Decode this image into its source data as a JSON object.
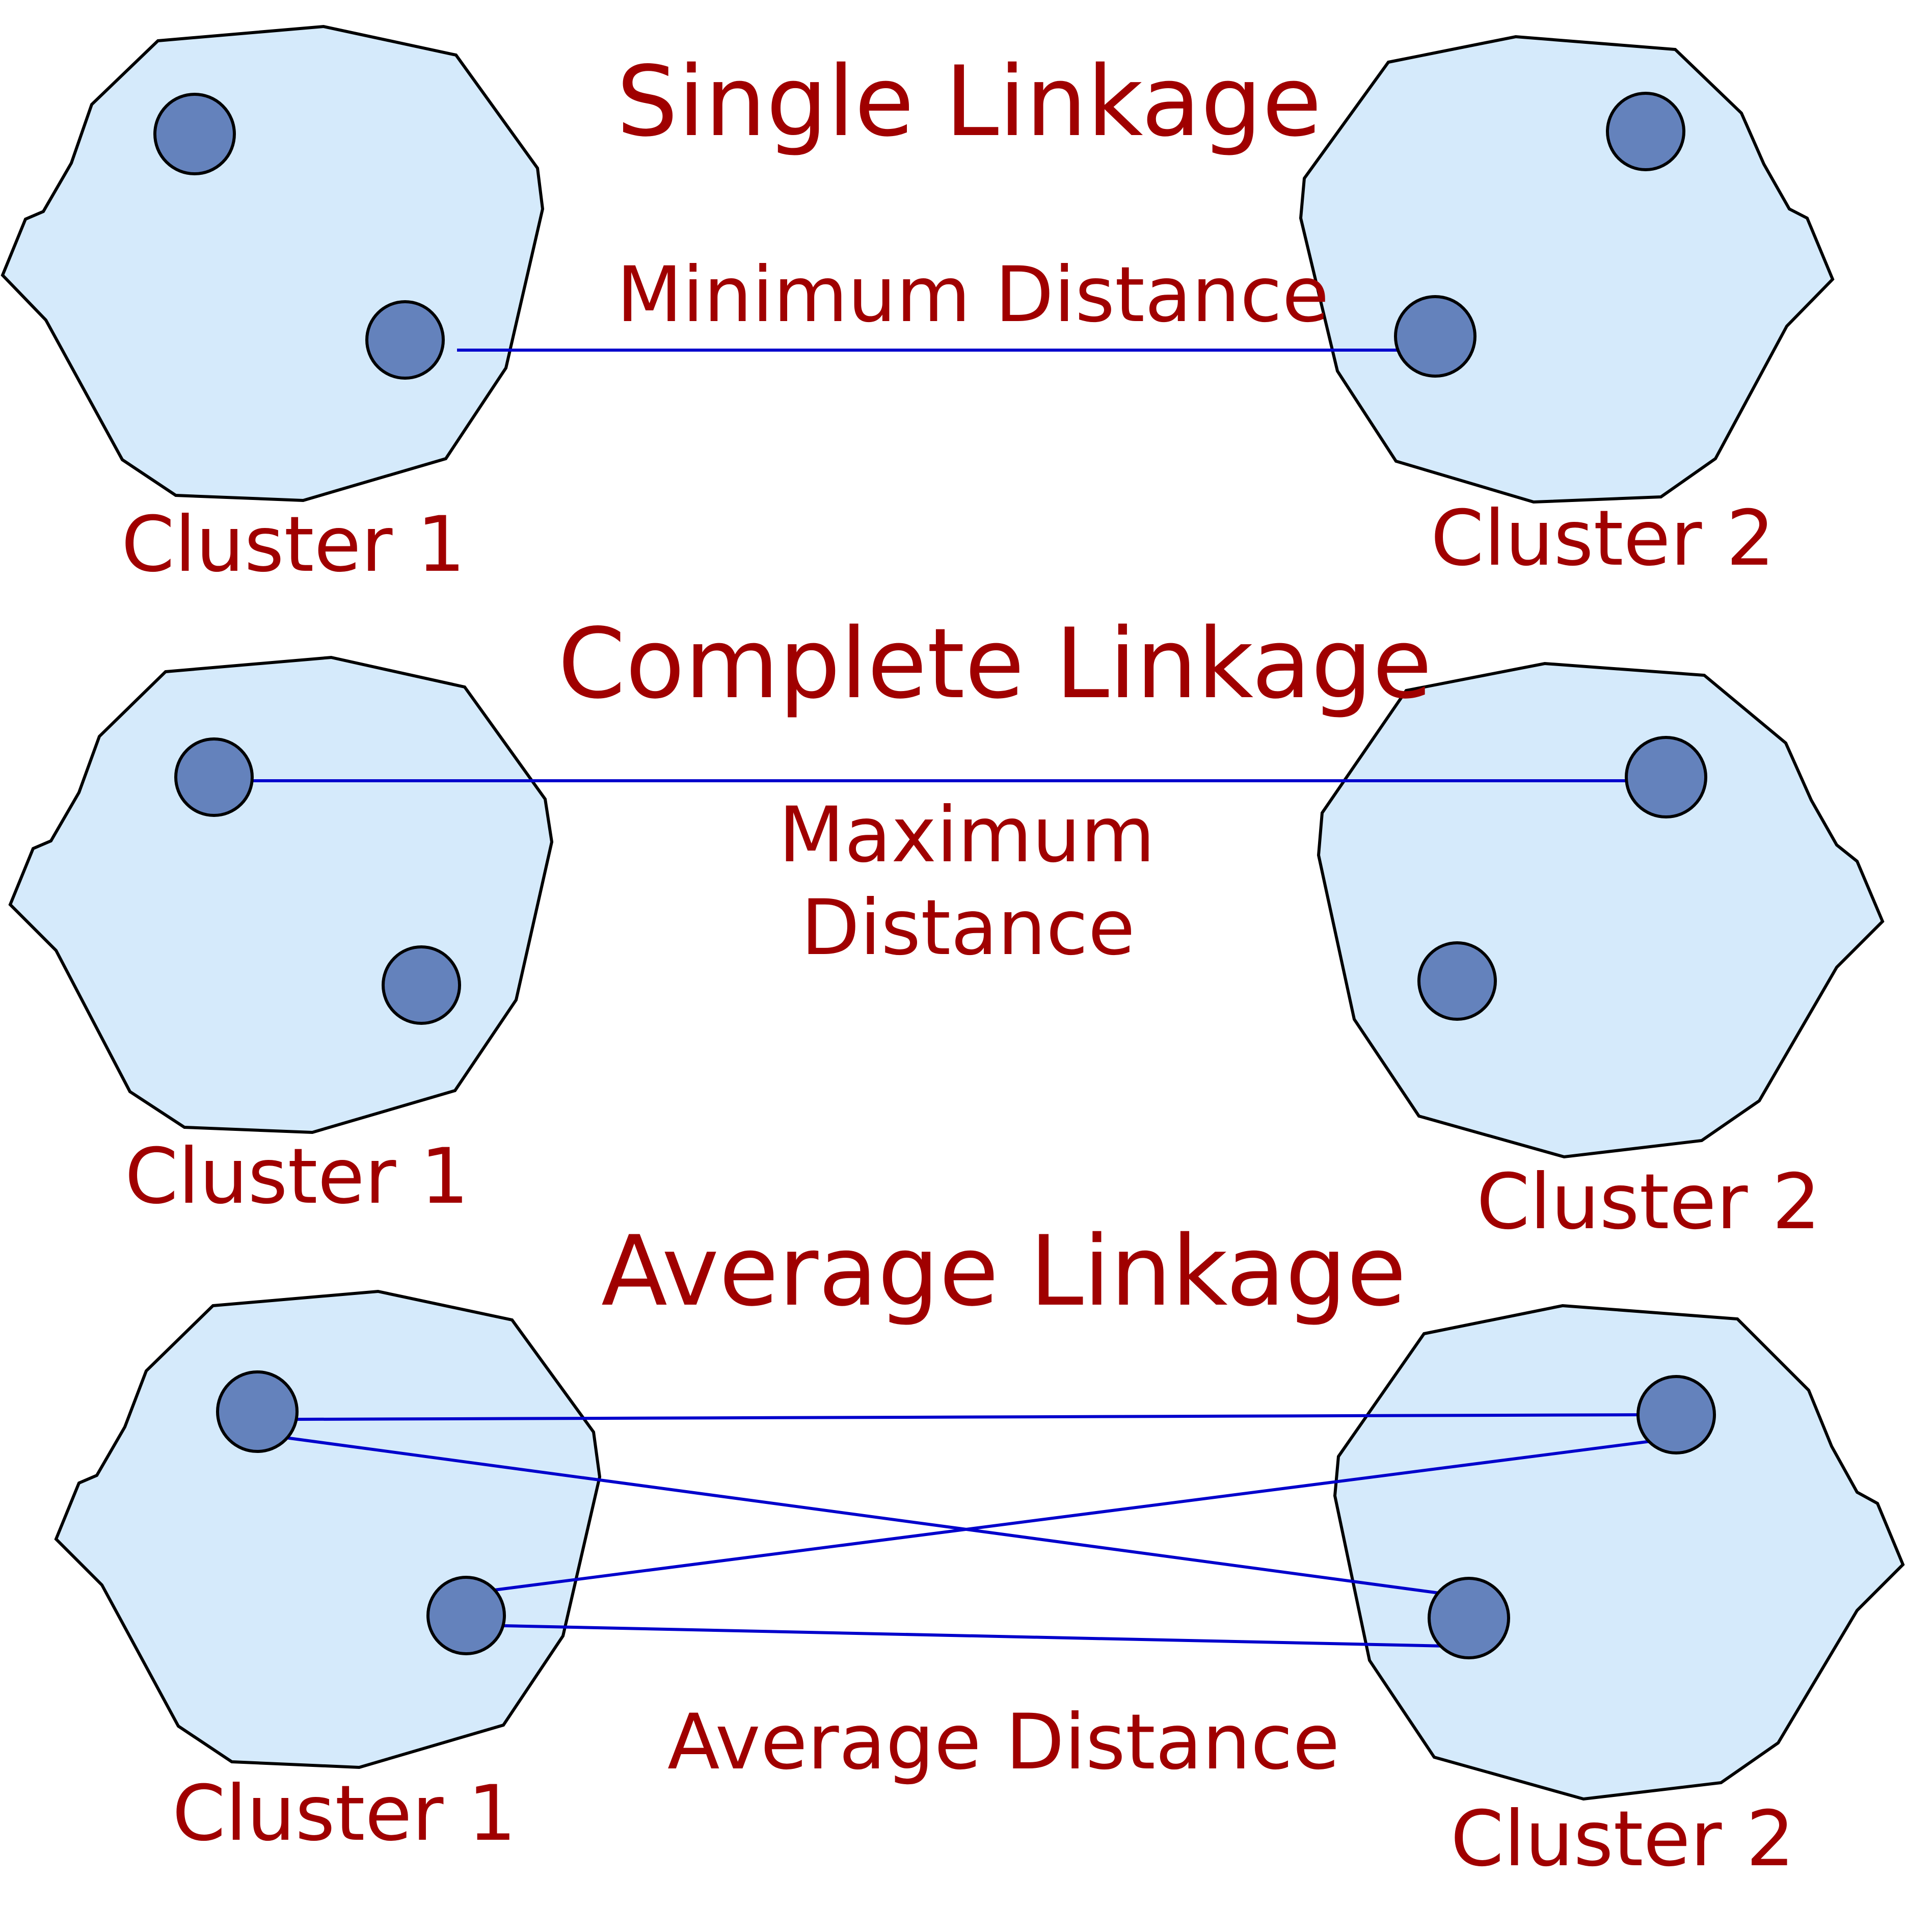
{
  "colors": {
    "cluster_fill": "#d5eafb",
    "cluster_stroke": "#000000",
    "point_fill": "#6482bc",
    "link": "#0000cc",
    "text": "#a00000"
  },
  "panels": [
    {
      "title": "Single Linkage",
      "distance_label": "Minimum Distance",
      "cluster_1_label": "Cluster 1",
      "cluster_2_label": "Cluster 2"
    },
    {
      "title": "Complete Linkage",
      "distance_label_line1": "Maximum",
      "distance_label_line2": "Distance",
      "cluster_1_label": "Cluster 1",
      "cluster_2_label": "Cluster 2"
    },
    {
      "title": "Average Linkage",
      "distance_label": "Average Distance",
      "cluster_1_label": "Cluster 1",
      "cluster_2_label": "Cluster 2"
    }
  ]
}
